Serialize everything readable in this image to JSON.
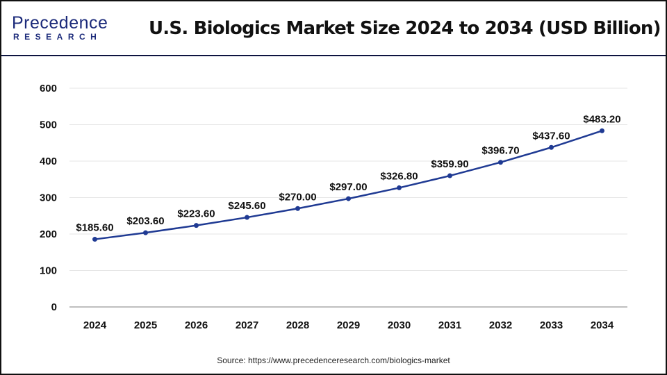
{
  "logo": {
    "line1": "Precedence",
    "line2": "RESEARCH"
  },
  "header": {
    "title": "U.S. Biologics Market Size 2024 to 2034 (USD Billion)"
  },
  "source": "Source: https://www.precedenceresearch.com/biologics-market",
  "colors": {
    "line": "#1f3a93",
    "header_rule": "#0d1440",
    "grid": "#e6e6e6",
    "axis": "#bfbfbf"
  },
  "chart_data": {
    "type": "line",
    "title": "U.S. Biologics Market Size 2024 to 2034 (USD Billion)",
    "xlabel": "",
    "ylabel": "",
    "categories": [
      "2024",
      "2025",
      "2026",
      "2027",
      "2028",
      "2029",
      "2030",
      "2031",
      "2032",
      "2033",
      "2034"
    ],
    "values": [
      185.6,
      203.6,
      223.6,
      245.6,
      270.0,
      297.0,
      326.8,
      359.9,
      396.7,
      437.6,
      483.2
    ],
    "data_labels": [
      "$185.60",
      "$203.60",
      "$223.60",
      "$245.60",
      "$270.00",
      "$297.00",
      "$326.80",
      "$359.90",
      "$396.70",
      "$437.60",
      "$483.20"
    ],
    "ylim": [
      0,
      600
    ],
    "yticks": [
      "0",
      "100",
      "200",
      "300",
      "400",
      "500",
      "600"
    ],
    "grid": true,
    "legend": "none"
  }
}
